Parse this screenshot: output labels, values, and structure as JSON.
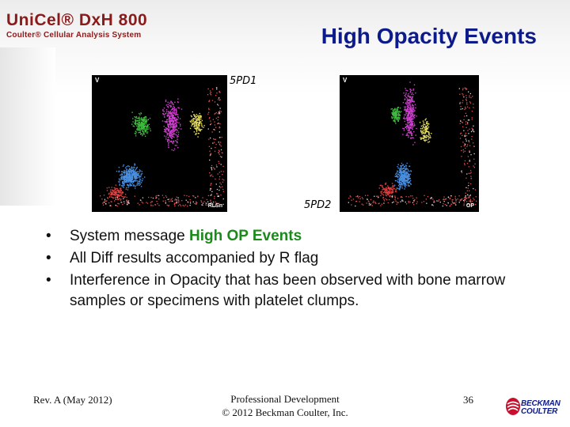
{
  "header": {
    "brand_title": "UniCel® DxH 800",
    "brand_subtitle": "Coulter® Cellular Analysis System",
    "slide_title": "High Opacity Events"
  },
  "plots": [
    {
      "caption": "5PD1",
      "y_axis_letter": "V",
      "x_axis_label": "RLSn"
    },
    {
      "caption": "5PD2",
      "y_axis_letter": "V",
      "x_axis_label": "OP"
    }
  ],
  "bullets": {
    "item1_prefix": "System message ",
    "item1_highlight": "High OP Events",
    "item2": "All Diff results accompanied by R flag",
    "item3": "Interference in Opacity that has been observed with bone marrow samples or specimens with platelet clumps."
  },
  "footer": {
    "revision": "Rev. A (May 2012)",
    "center_line1": "Professional Development",
    "center_line2": "© 2012 Beckman Coulter, Inc.",
    "page_number": "36",
    "logo_line1": "BECKMAN",
    "logo_line2": "COULTER"
  },
  "colors": {
    "title": "#0d1a8a",
    "brand": "#8b1a1a",
    "highlight": "#1a8a1a"
  }
}
